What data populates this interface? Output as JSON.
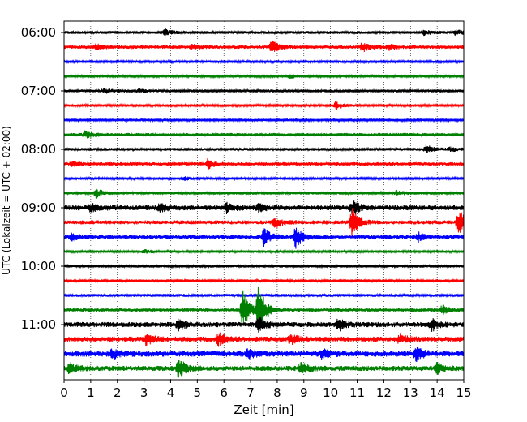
{
  "chart_data": {
    "type": "line",
    "title": "",
    "xlabel": "Zeit  [min]",
    "ylabel": "UTC (Lokalzeit = UTC + 02:00)",
    "xlim": [
      0,
      15
    ],
    "x_ticks": [
      "0",
      "1",
      "2",
      "3",
      "4",
      "5",
      "6",
      "7",
      "8",
      "9",
      "10",
      "11",
      "12",
      "13",
      "14",
      "15"
    ],
    "y_tick_labels": [
      "06:00",
      "07:00",
      "08:00",
      "09:00",
      "10:00",
      "11:00"
    ],
    "grid": "vertical dotted at each minute",
    "trace_interval_minutes": 15,
    "trace_colors": [
      "#000000",
      "#ff0000",
      "#0000ff",
      "#008000"
    ],
    "series": [
      {
        "start": "06:00",
        "color": "#000000",
        "noise": 0.25,
        "events": [
          {
            "t": 3.8,
            "amp": 0.5
          },
          {
            "t": 13.5,
            "amp": 0.4
          },
          {
            "t": 14.7,
            "amp": 0.5
          }
        ]
      },
      {
        "start": "06:15",
        "color": "#ff0000",
        "noise": 0.3,
        "events": [
          {
            "t": 1.2,
            "amp": 0.5
          },
          {
            "t": 4.8,
            "amp": 0.4
          },
          {
            "t": 7.8,
            "amp": 1.2
          },
          {
            "t": 11.2,
            "amp": 0.8
          },
          {
            "t": 12.2,
            "amp": 0.5
          }
        ]
      },
      {
        "start": "06:30",
        "color": "#0000ff",
        "noise": 0.2,
        "events": []
      },
      {
        "start": "06:45",
        "color": "#008000",
        "noise": 0.2,
        "events": [
          {
            "t": 8.5,
            "amp": 0.3
          }
        ]
      },
      {
        "start": "07:00",
        "color": "#000000",
        "noise": 0.25,
        "events": [
          {
            "t": 1.5,
            "amp": 0.4
          },
          {
            "t": 2.8,
            "amp": 0.3
          }
        ]
      },
      {
        "start": "07:15",
        "color": "#ff0000",
        "noise": 0.2,
        "events": [
          {
            "t": 10.2,
            "amp": 0.7
          }
        ]
      },
      {
        "start": "07:30",
        "color": "#0000ff",
        "noise": 0.2,
        "events": []
      },
      {
        "start": "07:45",
        "color": "#008000",
        "noise": 0.3,
        "events": [
          {
            "t": 0.8,
            "amp": 0.6
          }
        ]
      },
      {
        "start": "08:00",
        "color": "#000000",
        "noise": 0.25,
        "events": [
          {
            "t": 13.6,
            "amp": 0.7
          },
          {
            "t": 14.5,
            "amp": 0.4
          }
        ]
      },
      {
        "start": "08:15",
        "color": "#ff0000",
        "noise": 0.3,
        "events": [
          {
            "t": 0.3,
            "amp": 0.4
          },
          {
            "t": 5.4,
            "amp": 0.8
          }
        ]
      },
      {
        "start": "08:30",
        "color": "#0000ff",
        "noise": 0.2,
        "events": [
          {
            "t": 4.5,
            "amp": 0.3
          }
        ]
      },
      {
        "start": "08:45",
        "color": "#008000",
        "noise": 0.25,
        "events": [
          {
            "t": 1.2,
            "amp": 0.9
          },
          {
            "t": 12.5,
            "amp": 0.4
          }
        ]
      },
      {
        "start": "09:00",
        "color": "#000000",
        "noise": 0.45,
        "events": [
          {
            "t": 1.0,
            "amp": 0.6
          },
          {
            "t": 3.6,
            "amp": 0.7
          },
          {
            "t": 6.1,
            "amp": 0.9
          },
          {
            "t": 7.3,
            "amp": 0.6
          },
          {
            "t": 10.8,
            "amp": 1.4
          }
        ]
      },
      {
        "start": "09:15",
        "color": "#ff0000",
        "noise": 0.35,
        "events": [
          {
            "t": 7.9,
            "amp": 1.0
          },
          {
            "t": 10.8,
            "amp": 2.8
          },
          {
            "t": 14.8,
            "amp": 2.5
          }
        ]
      },
      {
        "start": "09:30",
        "color": "#0000ff",
        "noise": 0.35,
        "events": [
          {
            "t": 0.3,
            "amp": 0.6
          },
          {
            "t": 7.5,
            "amp": 1.6
          },
          {
            "t": 8.7,
            "amp": 2.0
          },
          {
            "t": 13.3,
            "amp": 0.7
          }
        ]
      },
      {
        "start": "09:45",
        "color": "#008000",
        "noise": 0.2,
        "events": [
          {
            "t": 3.0,
            "amp": 0.3
          }
        ]
      },
      {
        "start": "10:00",
        "color": "#000000",
        "noise": 0.25,
        "events": []
      },
      {
        "start": "10:15",
        "color": "#ff0000",
        "noise": 0.25,
        "events": []
      },
      {
        "start": "10:30",
        "color": "#0000ff",
        "noise": 0.25,
        "events": []
      },
      {
        "start": "10:45",
        "color": "#008000",
        "noise": 0.3,
        "events": [
          {
            "t": 6.7,
            "amp": 3.5
          },
          {
            "t": 7.3,
            "amp": 4.5
          },
          {
            "t": 14.2,
            "amp": 0.8
          }
        ]
      },
      {
        "start": "11:00",
        "color": "#000000",
        "noise": 0.45,
        "events": [
          {
            "t": 4.3,
            "amp": 1.0
          },
          {
            "t": 7.3,
            "amp": 1.2
          },
          {
            "t": 10.3,
            "amp": 1.0
          },
          {
            "t": 13.8,
            "amp": 1.0
          }
        ]
      },
      {
        "start": "11:15",
        "color": "#ff0000",
        "noise": 0.45,
        "events": [
          {
            "t": 3.1,
            "amp": 1.0
          },
          {
            "t": 5.8,
            "amp": 1.2
          },
          {
            "t": 8.5,
            "amp": 0.8
          },
          {
            "t": 12.6,
            "amp": 0.8
          }
        ]
      },
      {
        "start": "11:30",
        "color": "#0000ff",
        "noise": 0.5,
        "events": [
          {
            "t": 1.8,
            "amp": 0.8
          },
          {
            "t": 6.9,
            "amp": 0.8
          },
          {
            "t": 9.7,
            "amp": 0.8
          },
          {
            "t": 13.2,
            "amp": 1.2
          }
        ]
      },
      {
        "start": "11:45",
        "color": "#008000",
        "noise": 0.45,
        "events": [
          {
            "t": 0.2,
            "amp": 0.9
          },
          {
            "t": 4.3,
            "amp": 1.8
          },
          {
            "t": 8.9,
            "amp": 1.0
          },
          {
            "t": 14.0,
            "amp": 0.9
          }
        ]
      }
    ]
  }
}
